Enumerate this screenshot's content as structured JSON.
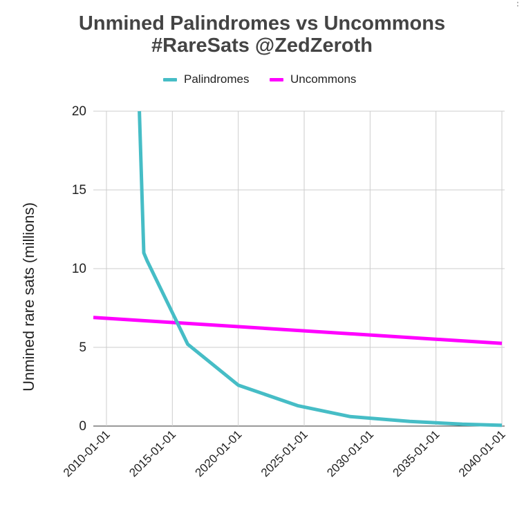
{
  "chart_data": {
    "type": "line",
    "title": "Unmined Palindromes vs Uncommons",
    "subtitle": "#RareSats @ZedZeroth",
    "xlabel": "",
    "ylabel": "Unmined rare sats (millions)",
    "x_tick_labels": [
      "2010-01-01",
      "2015-01-01",
      "2020-01-01",
      "2025-01-01",
      "2030-01-01",
      "2035-01-01",
      "2040-01-01"
    ],
    "y_tick_labels": [
      "0",
      "5",
      "10",
      "15",
      "20"
    ],
    "ylim": [
      0,
      20
    ],
    "xlim": [
      "2010-01-01",
      "2040-01-01"
    ],
    "grid": true,
    "legend": "top",
    "series": [
      {
        "name": "Palindromes",
        "color": "#46bdc6",
        "x": [
          "2012-07-01",
          "2012-11-01",
          "2013-02-01",
          "2016-03-01",
          "2020-01-01",
          "2024-07-01",
          "2028-07-01",
          "2033-01-01",
          "2037-01-01",
          "2040-01-01"
        ],
        "values": [
          20,
          11,
          10.5,
          5.2,
          2.6,
          1.3,
          0.6,
          0.3,
          0.12,
          0.05
        ]
      },
      {
        "name": "Uncommons",
        "color": "#ff00ff",
        "x": [
          "2009-01-03",
          "2040-01-01"
        ],
        "values": [
          6.9,
          5.25
        ]
      }
    ]
  },
  "ui": {
    "menu_icon": "more-vert-icon"
  }
}
